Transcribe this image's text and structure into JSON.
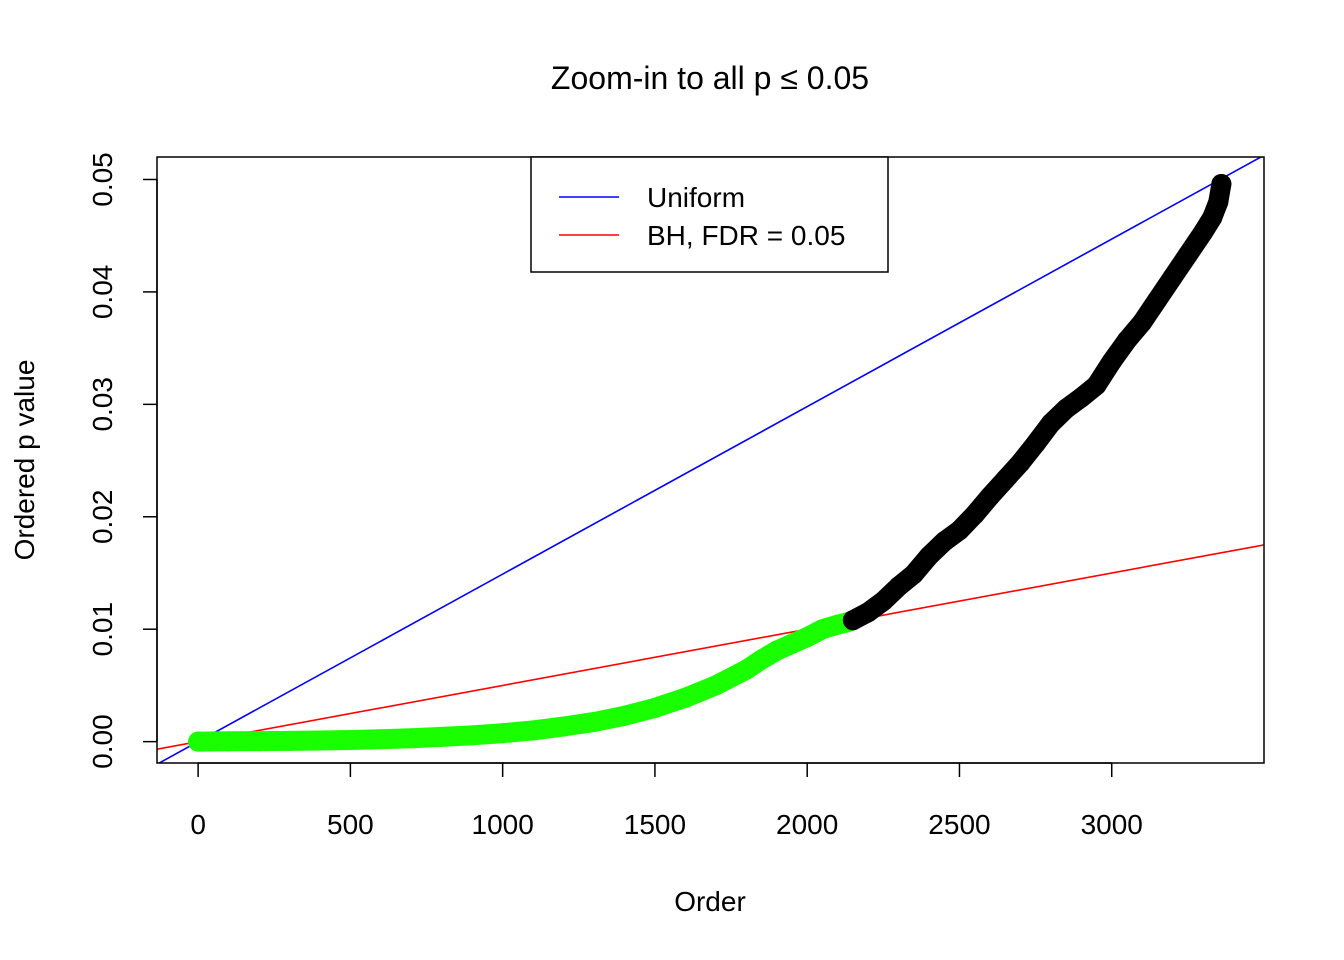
{
  "chart_data": {
    "type": "scatter",
    "title": "Zoom-in to all p ≤ 0.05",
    "xlabel": "Order",
    "ylabel": "Ordered p value",
    "xlim": [
      -135,
      3500
    ],
    "ylim": [
      -0.0019,
      0.052
    ],
    "x_ticks": [
      0,
      500,
      1000,
      1500,
      2000,
      2500,
      3000
    ],
    "x_tick_labels": [
      "0",
      "500",
      "1000",
      "1500",
      "2000",
      "2500",
      "3000"
    ],
    "y_ticks": [
      0.0,
      0.01,
      0.02,
      0.03,
      0.04,
      0.05
    ],
    "y_tick_labels": [
      "0.00",
      "0.01",
      "0.02",
      "0.03",
      "0.04",
      "0.05"
    ],
    "grid": false,
    "legend": {
      "position": "top-center",
      "entries": [
        {
          "label": "Uniform",
          "color": "#0000ff"
        },
        {
          "label": "BH, FDR = 0.05",
          "color": "#ff0000"
        }
      ]
    },
    "reference_lines": [
      {
        "label": "Uniform",
        "slope": 1.49e-05,
        "intercept": 0.0,
        "color": "#0000ff"
      },
      {
        "label": "BH, FDR = 0.05",
        "slope": 5e-06,
        "intercept": 0.0,
        "color": "#ff0000"
      }
    ],
    "series": [
      {
        "color": "#1aff00",
        "x": [
          0,
          100,
          200,
          300,
          400,
          500,
          600,
          700,
          800,
          900,
          1000,
          1100,
          1200,
          1300,
          1400,
          1500,
          1600,
          1700,
          1800,
          1850,
          1900,
          1950,
          2000,
          2050,
          2100,
          2130,
          2150
        ],
        "y": [
          0.0,
          3e-05,
          5e-05,
          7e-05,
          0.0001,
          0.00015,
          0.00022,
          0.0003,
          0.00042,
          0.00056,
          0.00075,
          0.001,
          0.00135,
          0.00175,
          0.0023,
          0.003,
          0.0039,
          0.005,
          0.0064,
          0.0073,
          0.0081,
          0.0087,
          0.0093,
          0.01,
          0.0104,
          0.0106,
          0.0108
        ]
      },
      {
        "color": "#000000",
        "x": [
          2150,
          2200,
          2250,
          2300,
          2350,
          2400,
          2450,
          2500,
          2550,
          2600,
          2650,
          2700,
          2750,
          2800,
          2850,
          2900,
          2950,
          3000,
          3050,
          3100,
          3150,
          3200,
          3250,
          3300,
          3330,
          3350,
          3360
        ],
        "y": [
          0.0108,
          0.0115,
          0.0125,
          0.0138,
          0.0149,
          0.0165,
          0.0178,
          0.0188,
          0.0202,
          0.0218,
          0.0233,
          0.0248,
          0.0265,
          0.0283,
          0.0296,
          0.0306,
          0.0317,
          0.0338,
          0.0357,
          0.0373,
          0.0393,
          0.0413,
          0.0433,
          0.0453,
          0.0466,
          0.048,
          0.0496
        ]
      }
    ]
  }
}
